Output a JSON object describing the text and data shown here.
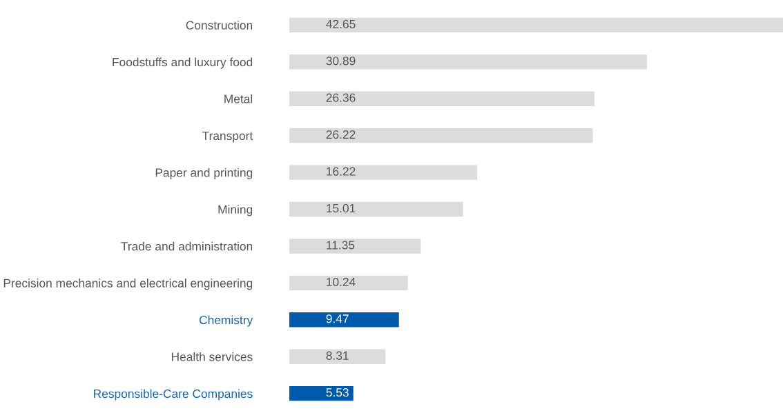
{
  "chart_data": {
    "type": "bar",
    "orientation": "horizontal",
    "data_labels": true,
    "grid": false,
    "legend": false,
    "categories": [
      "Construction",
      "Foodstuffs and luxury food",
      "Metal",
      "Transport",
      "Paper and printing",
      "Mining",
      "Trade and administration",
      "Precision mechanics and electrical engineering",
      "Chemistry",
      "Health services",
      "Responsible-Care Companies"
    ],
    "values": [
      42.65,
      30.89,
      26.36,
      26.22,
      16.22,
      15.01,
      11.35,
      10.24,
      9.47,
      8.31,
      5.53
    ],
    "colors": [
      "#dcdcdc",
      "#dcdcdc",
      "#dcdcdc",
      "#dcdcdc",
      "#dcdcdc",
      "#dcdcdc",
      "#dcdcdc",
      "#dcdcdc",
      "#005aab",
      "#dcdcdc",
      "#005aab"
    ]
  }
}
